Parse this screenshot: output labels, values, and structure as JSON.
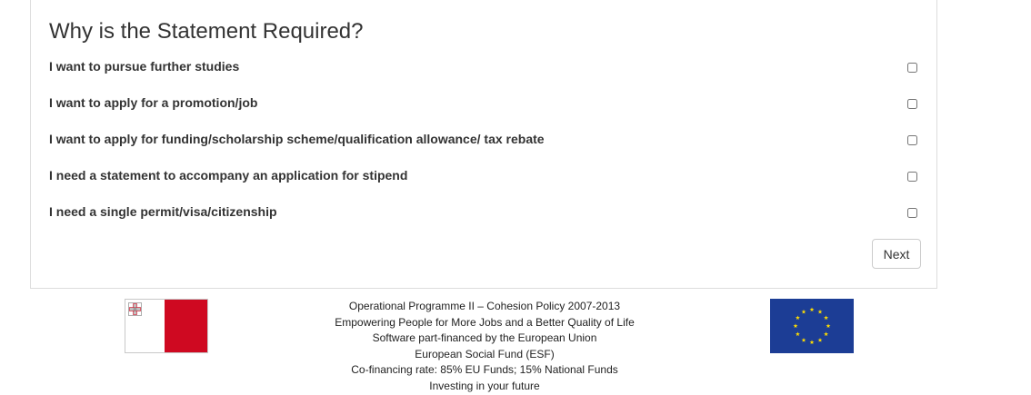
{
  "form": {
    "title": "Why is the Statement Required?",
    "options": [
      {
        "label": "I want to pursue further studies",
        "checked": false
      },
      {
        "label": "I want to apply for a promotion/job",
        "checked": false
      },
      {
        "label": "I want to apply for funding/scholarship scheme/qualification allowance/ tax rebate",
        "checked": false
      },
      {
        "label": "I need a statement to accompany an application for stipend",
        "checked": false
      },
      {
        "label": "I need a single permit/visa/citizenship",
        "checked": false
      }
    ],
    "next_label": "Next"
  },
  "footer": {
    "lines": [
      "Operational Programme II – Cohesion Policy 2007-2013",
      "Empowering People for More Jobs and a Better Quality of Life",
      "Software part-financed by the European Union",
      "European Social Fund (ESF)",
      "Co-financing rate: 85% EU Funds; 15% National Funds",
      "Investing in your future"
    ],
    "left_logo_icon": "malta-flag-icon",
    "right_logo_icon": "eu-flag-icon"
  },
  "colors": {
    "malta_red": "#cf0921",
    "eu_blue": "#1c3d95",
    "eu_star": "#ffdd00"
  }
}
